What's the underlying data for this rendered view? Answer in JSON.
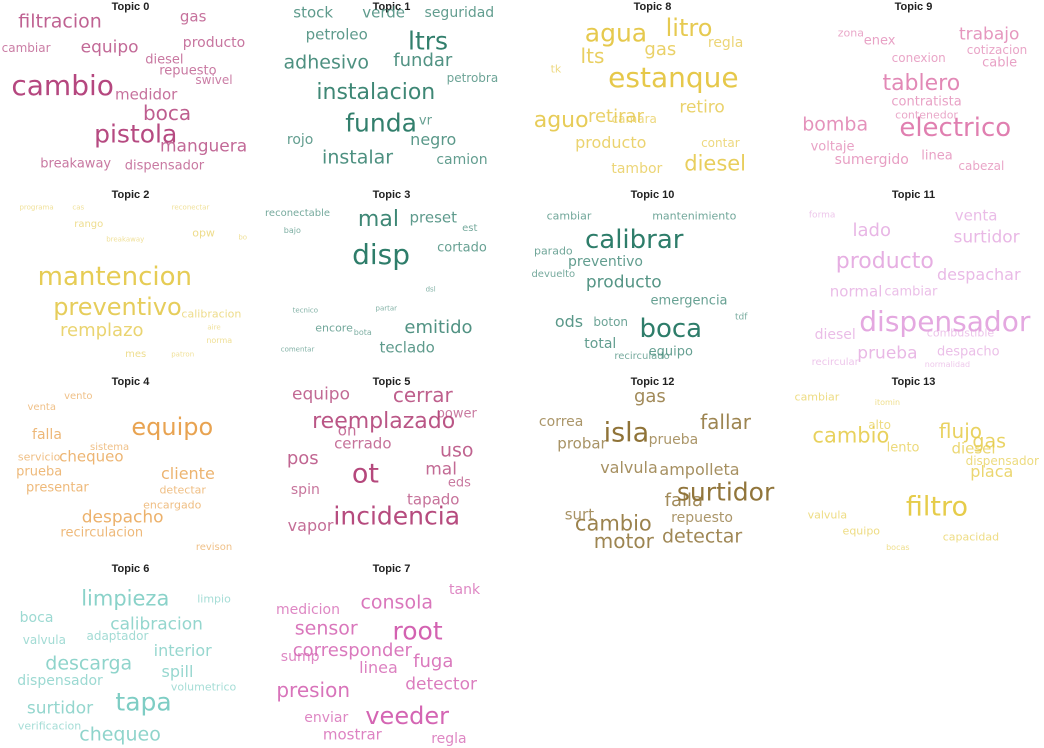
{
  "figure": {
    "topics": [
      {
        "title": "Topic 0",
        "color": "#b5477f",
        "words": [
          [
            "filtracion",
            19
          ],
          [
            "gas",
            15
          ],
          [
            "cambiar",
            12
          ],
          [
            "equipo",
            17
          ],
          [
            "producto",
            14
          ],
          [
            "diesel",
            13
          ],
          [
            "repuesto",
            13
          ],
          [
            "swivel",
            12
          ],
          [
            "cambio",
            28
          ],
          [
            "medidor",
            15
          ],
          [
            "boca",
            20
          ],
          [
            "pistola",
            25
          ],
          [
            "manguera",
            17
          ],
          [
            "breakaway",
            13
          ],
          [
            "dispensador",
            13
          ]
        ]
      },
      {
        "title": "Topic 1",
        "color": "#2e7d6a",
        "words": [
          [
            "stock",
            15
          ],
          [
            "verde",
            15
          ],
          [
            "seguridad",
            14
          ],
          [
            "petroleo",
            15
          ],
          [
            "ltrs",
            25
          ],
          [
            "adhesivo",
            19
          ],
          [
            "fundar",
            18
          ],
          [
            "petrobra",
            12
          ],
          [
            "instalacion",
            22
          ],
          [
            "funda",
            25
          ],
          [
            "vr",
            13
          ],
          [
            "rojo",
            14
          ],
          [
            "negro",
            16
          ],
          [
            "instalar",
            19
          ],
          [
            "camion",
            14
          ]
        ]
      },
      {
        "title": "Topic 8",
        "color": "#e6c84a",
        "words": [
          [
            "agua",
            25
          ],
          [
            "litro",
            24
          ],
          [
            "lts",
            20
          ],
          [
            "gas",
            18
          ],
          [
            "regla",
            14
          ],
          [
            "tk",
            11
          ],
          [
            "estanque",
            28
          ],
          [
            "retiro",
            17
          ],
          [
            "aguo",
            22
          ],
          [
            "camara",
            12
          ],
          [
            "retirar",
            18
          ],
          [
            "producto",
            16
          ],
          [
            "contar",
            12
          ],
          [
            "tambor",
            14
          ],
          [
            "diesel",
            21
          ]
        ]
      },
      {
        "title": "Topic 9",
        "color": "#e07fb0",
        "words": [
          [
            "zona",
            11
          ],
          [
            "enex",
            13
          ],
          [
            "trabajo",
            17
          ],
          [
            "cotizacion",
            12
          ],
          [
            "conexion",
            12
          ],
          [
            "cable",
            13
          ],
          [
            "tablero",
            22
          ],
          [
            "contratista",
            13
          ],
          [
            "contenedor",
            11
          ],
          [
            "bomba",
            19
          ],
          [
            "electrico",
            26
          ],
          [
            "voltaje",
            13
          ],
          [
            "sumergido",
            14
          ],
          [
            "linea",
            13
          ],
          [
            "cabezal",
            12
          ]
        ]
      },
      {
        "title": "Topic 2",
        "color": "#e6cc55",
        "words": [
          [
            "programa",
            7
          ],
          [
            "cas",
            7
          ],
          [
            "reconectar",
            7
          ],
          [
            "rango",
            10
          ],
          [
            "opw",
            11
          ],
          [
            "bo",
            7
          ],
          [
            "breakaway",
            7
          ],
          [
            "mantencion",
            26
          ],
          [
            "preventivo",
            24
          ],
          [
            "calibracion",
            11
          ],
          [
            "aire",
            7
          ],
          [
            "remplazo",
            18
          ],
          [
            "norma",
            8
          ],
          [
            "mes",
            10
          ],
          [
            "patron",
            7
          ]
        ]
      },
      {
        "title": "Topic 3",
        "color": "#2e7d6a",
        "words": [
          [
            "reconectable",
            10
          ],
          [
            "bajo",
            8
          ],
          [
            "mal",
            22
          ],
          [
            "preset",
            15
          ],
          [
            "est",
            10
          ],
          [
            "disp",
            28
          ],
          [
            "cortado",
            13
          ],
          [
            "dsl",
            7
          ],
          [
            "tecnico",
            7
          ],
          [
            "partar",
            7
          ],
          [
            "encore",
            11
          ],
          [
            "bota",
            8
          ],
          [
            "emitido",
            18
          ],
          [
            "comentar",
            7
          ],
          [
            "teclado",
            15
          ]
        ]
      },
      {
        "title": "Topic 10",
        "color": "#2e7d6a",
        "words": [
          [
            "cambiar",
            11
          ],
          [
            "mantenimiento",
            11
          ],
          [
            "calibrar",
            26
          ],
          [
            "parado",
            11
          ],
          [
            "preventivo",
            14
          ],
          [
            "devuelto",
            10
          ],
          [
            "producto",
            17
          ],
          [
            "emergencia",
            13
          ],
          [
            "ods",
            16
          ],
          [
            "boton",
            12
          ],
          [
            "boca",
            26
          ],
          [
            "tdf",
            9
          ],
          [
            "total",
            14
          ],
          [
            "equipo",
            13
          ],
          [
            "recirculado",
            10
          ]
        ]
      },
      {
        "title": "Topic 11",
        "color": "#e4a8e0",
        "words": [
          [
            "forma",
            9
          ],
          [
            "lado",
            18
          ],
          [
            "venta",
            15
          ],
          [
            "surtidor",
            17
          ],
          [
            "producto",
            22
          ],
          [
            "despachar",
            16
          ],
          [
            "normal",
            15
          ],
          [
            "cambiar",
            13
          ],
          [
            "dispensador",
            28
          ],
          [
            "diesel",
            14
          ],
          [
            "combustible",
            11
          ],
          [
            "prueba",
            17
          ],
          [
            "despacho",
            13
          ],
          [
            "recircular",
            10
          ],
          [
            "normalidad",
            8
          ]
        ]
      },
      {
        "title": "Topic 4",
        "color": "#e8a04a",
        "words": [
          [
            "vento",
            10
          ],
          [
            "venta",
            10
          ],
          [
            "equipo",
            24
          ],
          [
            "falla",
            14
          ],
          [
            "sistema",
            10
          ],
          [
            "servicio",
            11
          ],
          [
            "chequeo",
            15
          ],
          [
            "prueba",
            13
          ],
          [
            "cliente",
            16
          ],
          [
            "presentar",
            13
          ],
          [
            "detectar",
            11
          ],
          [
            "encargado",
            11
          ],
          [
            "despacho",
            17
          ],
          [
            "recirculacion",
            13
          ],
          [
            "revison",
            10
          ]
        ]
      },
      {
        "title": "Topic 5",
        "color": "#b5487c",
        "words": [
          [
            "equipo",
            17
          ],
          [
            "cerrar",
            20
          ],
          [
            "reemplazado",
            22
          ],
          [
            "power",
            13
          ],
          [
            "on",
            15
          ],
          [
            "cerrado",
            15
          ],
          [
            "uso",
            19
          ],
          [
            "pos",
            18
          ],
          [
            "ot",
            27
          ],
          [
            "mal",
            17
          ],
          [
            "eds",
            13
          ],
          [
            "spin",
            14
          ],
          [
            "tapado",
            15
          ],
          [
            "incidencia",
            25
          ],
          [
            "vapor",
            16
          ]
        ]
      },
      {
        "title": "Topic 12",
        "color": "#8f7338",
        "words": [
          [
            "gas",
            18
          ],
          [
            "correa",
            14
          ],
          [
            "isla",
            27
          ],
          [
            "fallar",
            20
          ],
          [
            "probar",
            15
          ],
          [
            "prueba",
            14
          ],
          [
            "valvula",
            16
          ],
          [
            "ampolleta",
            16
          ],
          [
            "surtidor",
            25
          ],
          [
            "falla",
            18
          ],
          [
            "surt",
            15
          ],
          [
            "cambio",
            21
          ],
          [
            "repuesto",
            14
          ],
          [
            "motor",
            20
          ],
          [
            "detectar",
            19
          ]
        ]
      },
      {
        "title": "Topic 13",
        "color": "#e6cc4a",
        "words": [
          [
            "cambiar",
            11
          ],
          [
            "itomin",
            8
          ],
          [
            "alto",
            12
          ],
          [
            "flujo",
            20
          ],
          [
            "gas",
            19
          ],
          [
            "diesel",
            15
          ],
          [
            "cambio",
            21
          ],
          [
            "dispensador",
            12
          ],
          [
            "lento",
            13
          ],
          [
            "placa",
            16
          ],
          [
            "filtro",
            27
          ],
          [
            "valvula",
            11
          ],
          [
            "equipo",
            11
          ],
          [
            "capacidad",
            11
          ],
          [
            "bocas",
            8
          ]
        ]
      },
      {
        "title": "Topic 6",
        "color": "#7ccdc3",
        "words": [
          [
            "limpieza",
            21
          ],
          [
            "limpio",
            11
          ],
          [
            "boca",
            14
          ],
          [
            "calibracion",
            17
          ],
          [
            "valvula",
            12
          ],
          [
            "adaptador",
            12
          ],
          [
            "interior",
            16
          ],
          [
            "descarga",
            19
          ],
          [
            "spill",
            16
          ],
          [
            "dispensador",
            14
          ],
          [
            "volumetrico",
            11
          ],
          [
            "tapa",
            25
          ],
          [
            "surtidor",
            17
          ],
          [
            "verificacion",
            11
          ],
          [
            "chequeo",
            19
          ]
        ]
      },
      {
        "title": "Topic 7",
        "color": "#d35fb0",
        "words": [
          [
            "tank",
            14
          ],
          [
            "medicion",
            14
          ],
          [
            "consola",
            19
          ],
          [
            "sensor",
            19
          ],
          [
            "root",
            25
          ],
          [
            "corresponder",
            18
          ],
          [
            "sump",
            14
          ],
          [
            "linea",
            16
          ],
          [
            "fuga",
            18
          ],
          [
            "presion",
            20
          ],
          [
            "detector",
            17
          ],
          [
            "enviar",
            14
          ],
          [
            "veeder",
            24
          ],
          [
            "mostrar",
            15
          ],
          [
            "regla",
            14
          ]
        ]
      }
    ]
  }
}
